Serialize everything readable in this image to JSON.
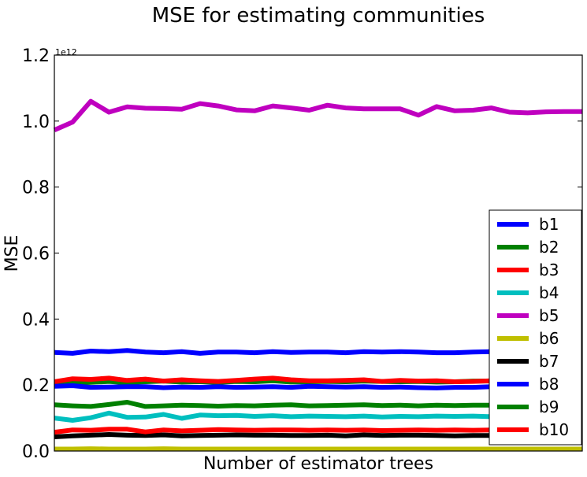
{
  "chart_data": {
    "type": "line",
    "title": "MSE for estimating communities",
    "xlabel": "Number of estimator trees",
    "ylabel": "MSE",
    "y_exponent_label": "1e12",
    "ylim": [
      0,
      1.2
    ],
    "yticks": [
      "0.0",
      "0.2",
      "0.4",
      "0.6",
      "0.8",
      "1.0",
      "1.2"
    ],
    "ytick_values": [
      0,
      0.2,
      0.4,
      0.6,
      0.8,
      1.0,
      1.2
    ],
    "x": [
      1,
      2,
      3,
      4,
      5,
      6,
      7,
      8,
      9,
      10,
      11,
      12,
      13,
      14,
      15,
      16,
      17,
      18,
      19,
      20,
      21,
      22,
      23,
      24,
      25,
      26,
      27,
      28,
      29,
      30
    ],
    "xlim": [
      1,
      30
    ],
    "grid": false,
    "legend_position": "lower-right",
    "series": [
      {
        "name": "b1",
        "color": "#0000ff",
        "values": [
          0.299,
          0.296,
          0.303,
          0.301,
          0.305,
          0.3,
          0.298,
          0.301,
          0.296,
          0.3,
          0.3,
          0.298,
          0.301,
          0.299,
          0.3,
          0.3,
          0.298,
          0.301,
          0.3,
          0.301,
          0.3,
          0.298,
          0.298,
          0.3,
          0.301,
          0.3,
          0.3,
          0.3,
          0.299,
          0.299
        ]
      },
      {
        "name": "b2",
        "color": "#008000",
        "values": [
          0.209,
          0.206,
          0.208,
          0.211,
          0.207,
          0.21,
          0.212,
          0.209,
          0.21,
          0.208,
          0.211,
          0.21,
          0.213,
          0.209,
          0.21,
          0.211,
          0.21,
          0.212,
          0.211,
          0.21,
          0.211,
          0.209,
          0.21,
          0.212,
          0.212,
          0.21,
          0.211,
          0.21,
          0.211,
          0.211
        ]
      },
      {
        "name": "b3",
        "color": "#ff0000",
        "values": [
          0.21,
          0.219,
          0.217,
          0.221,
          0.214,
          0.218,
          0.212,
          0.216,
          0.213,
          0.211,
          0.214,
          0.218,
          0.221,
          0.216,
          0.213,
          0.213,
          0.214,
          0.216,
          0.211,
          0.214,
          0.212,
          0.213,
          0.21,
          0.211,
          0.213,
          0.214,
          0.212,
          0.213,
          0.212,
          0.212
        ]
      },
      {
        "name": "b4",
        "color": "#00bfbf",
        "values": [
          0.1,
          0.093,
          0.101,
          0.115,
          0.102,
          0.103,
          0.111,
          0.099,
          0.109,
          0.107,
          0.108,
          0.105,
          0.107,
          0.104,
          0.106,
          0.105,
          0.104,
          0.106,
          0.103,
          0.105,
          0.104,
          0.106,
          0.105,
          0.106,
          0.104,
          0.105,
          0.106,
          0.105,
          0.105,
          0.106
        ]
      },
      {
        "name": "b5",
        "color": "#bf00bf",
        "values": [
          0.973,
          0.997,
          1.06,
          1.027,
          1.043,
          1.039,
          1.038,
          1.036,
          1.053,
          1.046,
          1.034,
          1.031,
          1.046,
          1.04,
          1.033,
          1.048,
          1.04,
          1.037,
          1.037,
          1.037,
          1.018,
          1.044,
          1.031,
          1.033,
          1.04,
          1.027,
          1.025,
          1.028,
          1.029,
          1.029
        ]
      },
      {
        "name": "b6",
        "color": "#bfbf00",
        "values": [
          0.006,
          0.006,
          0.007,
          0.006,
          0.006,
          0.006,
          0.007,
          0.006,
          0.006,
          0.006,
          0.006,
          0.006,
          0.006,
          0.006,
          0.006,
          0.006,
          0.006,
          0.006,
          0.006,
          0.006,
          0.006,
          0.006,
          0.006,
          0.006,
          0.006,
          0.006,
          0.006,
          0.006,
          0.006,
          0.006
        ]
      },
      {
        "name": "b7",
        "color": "#000000",
        "values": [
          0.043,
          0.046,
          0.048,
          0.05,
          0.048,
          0.047,
          0.049,
          0.046,
          0.047,
          0.048,
          0.049,
          0.048,
          0.048,
          0.047,
          0.047,
          0.048,
          0.046,
          0.049,
          0.047,
          0.048,
          0.048,
          0.047,
          0.046,
          0.047,
          0.047,
          0.048,
          0.048,
          0.047,
          0.048,
          0.048
        ]
      },
      {
        "name": "b8",
        "color": "#0000ff",
        "values": [
          0.196,
          0.198,
          0.193,
          0.194,
          0.195,
          0.195,
          0.192,
          0.194,
          0.193,
          0.195,
          0.193,
          0.194,
          0.195,
          0.193,
          0.196,
          0.195,
          0.194,
          0.195,
          0.193,
          0.194,
          0.192,
          0.191,
          0.193,
          0.193,
          0.195,
          0.195,
          0.193,
          0.194,
          0.194,
          0.194
        ]
      },
      {
        "name": "b9",
        "color": "#008000",
        "values": [
          0.14,
          0.137,
          0.135,
          0.141,
          0.148,
          0.135,
          0.137,
          0.139,
          0.138,
          0.136,
          0.138,
          0.137,
          0.139,
          0.14,
          0.137,
          0.138,
          0.139,
          0.14,
          0.138,
          0.139,
          0.137,
          0.139,
          0.138,
          0.139,
          0.139,
          0.138,
          0.139,
          0.139,
          0.14,
          0.14
        ]
      },
      {
        "name": "b10",
        "color": "#ff0000",
        "values": [
          0.057,
          0.064,
          0.063,
          0.066,
          0.066,
          0.058,
          0.064,
          0.061,
          0.063,
          0.065,
          0.064,
          0.063,
          0.064,
          0.064,
          0.063,
          0.064,
          0.063,
          0.064,
          0.062,
          0.063,
          0.064,
          0.063,
          0.064,
          0.063,
          0.064,
          0.063,
          0.064,
          0.063,
          0.064,
          0.064
        ]
      }
    ]
  }
}
